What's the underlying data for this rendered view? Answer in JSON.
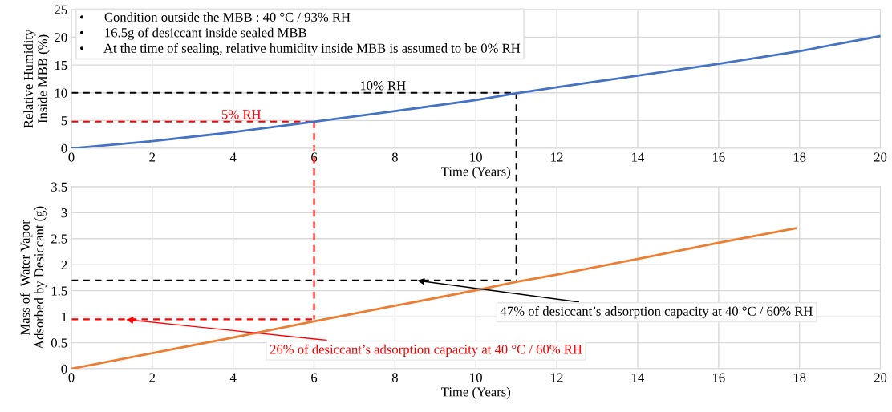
{
  "chart_data": [
    {
      "type": "line",
      "xlabel": "Time (Years)",
      "ylabel": "Relative Humidity\nInside MBB (%)",
      "x": [
        0,
        2,
        4,
        6,
        8,
        10,
        11,
        12,
        14,
        16,
        18,
        20
      ],
      "series": [
        {
          "color": "#4472c4",
          "values": [
            0,
            1.3,
            2.9,
            4.8,
            6.7,
            8.7,
            9.9,
            11.0,
            13.1,
            15.2,
            17.5,
            20.2
          ]
        }
      ],
      "xlim": [
        0,
        20
      ],
      "xticks": [
        0,
        2,
        4,
        6,
        8,
        10,
        12,
        14,
        16,
        18,
        20
      ],
      "ylim": [
        0,
        25
      ],
      "yticks": [
        0,
        5,
        10,
        15,
        20,
        25
      ],
      "grid": true,
      "legend": false,
      "ref_lines": [
        {
          "axis": "y",
          "value": 10,
          "label": "10% RH",
          "color": "#000000",
          "line_style": "dashed"
        },
        {
          "axis": "y",
          "value": 4.8,
          "label": "5% RH",
          "color": "#ff0000",
          "line_style": "dashed"
        },
        {
          "axis": "x",
          "value": 11,
          "color": "#000000",
          "line_style": "dashed"
        },
        {
          "axis": "x",
          "value": 6,
          "color": "#ff0000",
          "line_style": "dashed"
        }
      ],
      "annotations": [
        "•      Condition outside the MBB : 40 °C / 93% RH\n•      16.5g of desiccant inside sealed MBB\n•      At the time of sealing, relative humidity inside MBB is assumed to be 0% RH"
      ]
    },
    {
      "type": "line",
      "xlabel": "Time (Years)",
      "ylabel": "Mass of  Water Vapor\nAdsorbed by Desiccant (g)",
      "x": [
        0,
        2,
        4,
        6,
        8,
        10,
        11,
        12,
        14,
        16,
        17.9
      ],
      "series": [
        {
          "color": "#ed7d31",
          "values": [
            0,
            0.3,
            0.6,
            0.91,
            1.21,
            1.51,
            1.67,
            1.81,
            2.11,
            2.42,
            2.7
          ]
        }
      ],
      "xlim": [
        0,
        20
      ],
      "xticks": [
        0,
        2,
        4,
        6,
        8,
        10,
        12,
        14,
        16,
        18,
        20
      ],
      "ylim": [
        0,
        3.5
      ],
      "yticks": [
        0,
        0.5,
        1,
        1.5,
        2,
        2.5,
        3,
        3.5
      ],
      "grid": true,
      "legend": false,
      "ref_lines": [
        {
          "axis": "y",
          "value": 1.7,
          "color": "#000000",
          "line_style": "dashed"
        },
        {
          "axis": "y",
          "value": 0.95,
          "color": "#ff0000",
          "line_style": "dashed"
        },
        {
          "axis": "x",
          "value": 11,
          "color": "#000000",
          "line_style": "dashed"
        },
        {
          "axis": "x",
          "value": 6,
          "color": "#ff0000",
          "line_style": "dashed"
        }
      ],
      "annotations": [
        {
          "text": "47% of desiccant’s adsorption capacity at 40 °C / 60% RH",
          "x": 8.5,
          "y": 1.7
        },
        {
          "text": "26% of desiccant’s adsorption capacity at 40 °C / 60% RH",
          "x": 1.3,
          "y": 0.95
        }
      ]
    }
  ]
}
